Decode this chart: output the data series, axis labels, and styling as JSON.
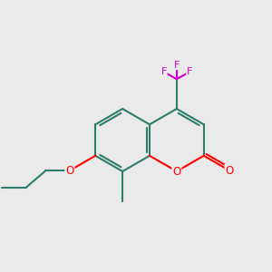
{
  "background_color": "#eaeaea",
  "bond_color": "#2d7d6b",
  "O_color": "#ff0000",
  "F_color": "#cc00cc",
  "lw": 1.5,
  "figsize": [
    3.0,
    3.0
  ],
  "dpi": 100,
  "xlim": [
    0.0,
    10.0
  ],
  "ylim": [
    1.5,
    9.5
  ]
}
